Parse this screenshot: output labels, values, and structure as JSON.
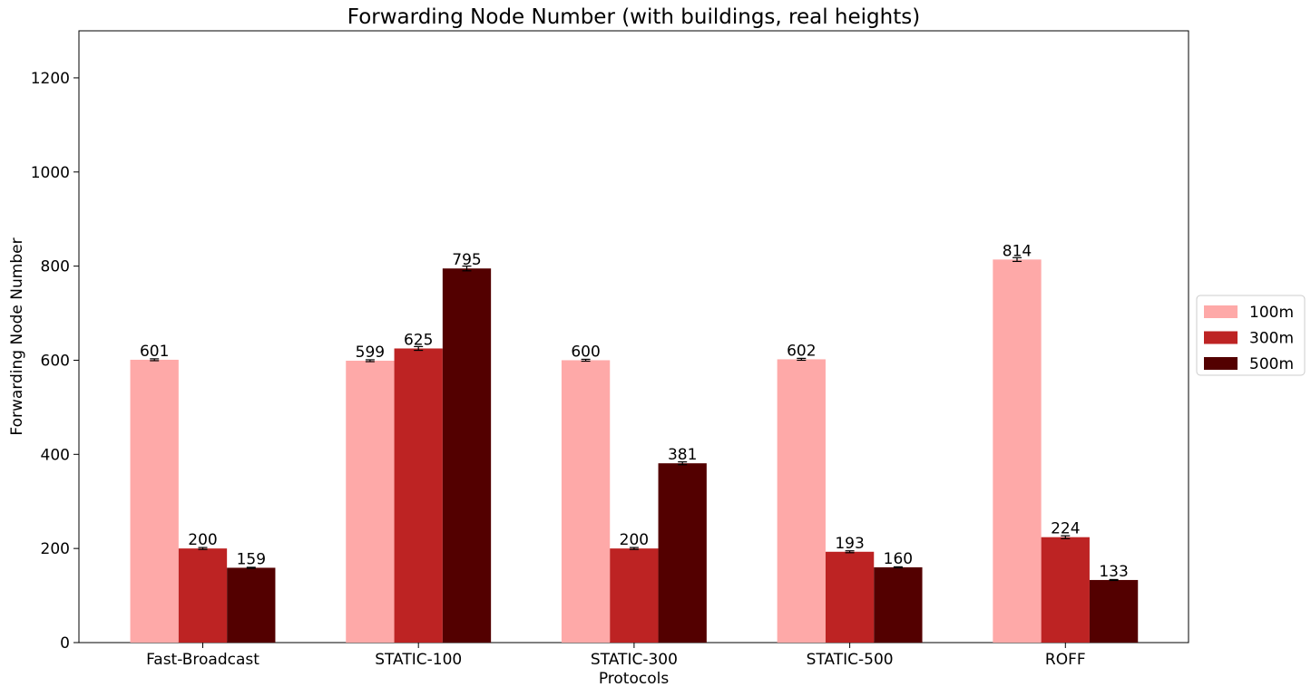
{
  "chart_data": {
    "type": "bar",
    "title": "Forwarding Node Number (with buildings, real heights)",
    "xlabel": "Protocols",
    "ylabel": "Forwarding Node Number",
    "categories": [
      "Fast-Broadcast",
      "STATIC-100",
      "STATIC-300",
      "STATIC-500",
      "ROFF"
    ],
    "series": [
      {
        "name": "100m",
        "color": "#fea9a8",
        "values": [
          601,
          599,
          600,
          602,
          814
        ],
        "errors": [
          2,
          2,
          2,
          2,
          4
        ]
      },
      {
        "name": "300m",
        "color": "#bd2323",
        "values": [
          200,
          625,
          200,
          193,
          224
        ],
        "errors": [
          2,
          4,
          2,
          2,
          3
        ]
      },
      {
        "name": "500m",
        "color": "#530000",
        "values": [
          159,
          795,
          381,
          160,
          133
        ],
        "errors": [
          1,
          5,
          3,
          1,
          1
        ]
      }
    ],
    "data_labels": [
      [
        "601",
        "599",
        "600",
        "602",
        "814"
      ],
      [
        "200",
        "625",
        "200",
        "193",
        "224"
      ],
      [
        "159",
        "795",
        "381",
        "160",
        "133"
      ]
    ],
    "ylim": [
      0,
      1300
    ],
    "yticks": [
      0,
      200,
      400,
      600,
      800,
      1000,
      1200
    ],
    "grid": false,
    "legend_position": "right"
  }
}
